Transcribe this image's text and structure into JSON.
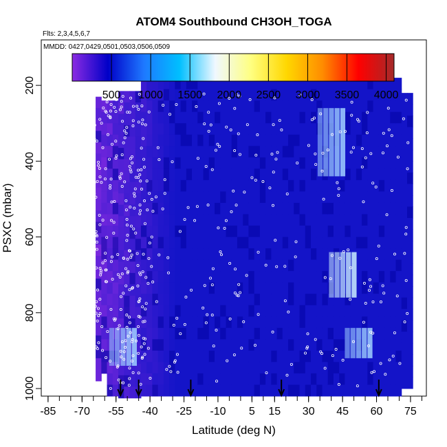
{
  "chart_data": {
    "type": "heatmap",
    "title": "ATOM4 Southbound CH3OH_TOGA",
    "flights_label": "Flts: 2,3,4,5,6,7",
    "dates_label": "MMDD: 0427,0429,0501,0503,0506,0509",
    "xlabel": "Latitude (deg N)",
    "ylabel": "PSXC (mbar)",
    "x_ticks": [
      "-85",
      "-70",
      "-55",
      "-40",
      "-25",
      "-10",
      "5",
      "15",
      "30",
      "45",
      "60",
      "75"
    ],
    "y_ticks": [
      "200",
      "400",
      "600",
      "800",
      "1000"
    ],
    "xlim": [
      -88,
      82
    ],
    "ylim": [
      1020,
      80
    ],
    "y_reversed": true,
    "colorbar": {
      "ticks": [
        "500",
        "1000",
        "1500",
        "2000",
        "2500",
        "3000",
        "3500",
        "4000"
      ],
      "range": [
        0,
        4100
      ],
      "colors": [
        "#8b2be2",
        "#0000c8",
        "#1e78ff",
        "#00bfff",
        "#f0f8ff",
        "#ffff80",
        "#ffd700",
        "#ff8c00",
        "#ff0000",
        "#a52a2a"
      ]
    },
    "colors": {
      "low": "#8b2be2",
      "background_field": "#1414c8",
      "mid": "#00bfff",
      "sample_points": "#ffffff",
      "markers": "#000000"
    },
    "marker_arrows_lat": [
      -53,
      -45,
      -22,
      18,
      61
    ],
    "coverage": [
      {
        "lat_min": -64,
        "lat_max": 74,
        "p_min": 180,
        "p_max": 1000
      }
    ],
    "features": [
      {
        "lat": -52,
        "p_range": [
          840,
          940
        ],
        "level": 1500,
        "label": "blue patch southern boundary layer"
      },
      {
        "lat": 40,
        "p_range": [
          260,
          440
        ],
        "level": 1500,
        "label": "upper troposphere enhancement"
      },
      {
        "lat": 45,
        "p_range": [
          640,
          760
        ],
        "level": 2000,
        "label": "northern mid-troposphere max"
      },
      {
        "lat": 52,
        "p_range": [
          840,
          920
        ],
        "level": 1500,
        "label": "northern lower-troposphere"
      }
    ]
  }
}
